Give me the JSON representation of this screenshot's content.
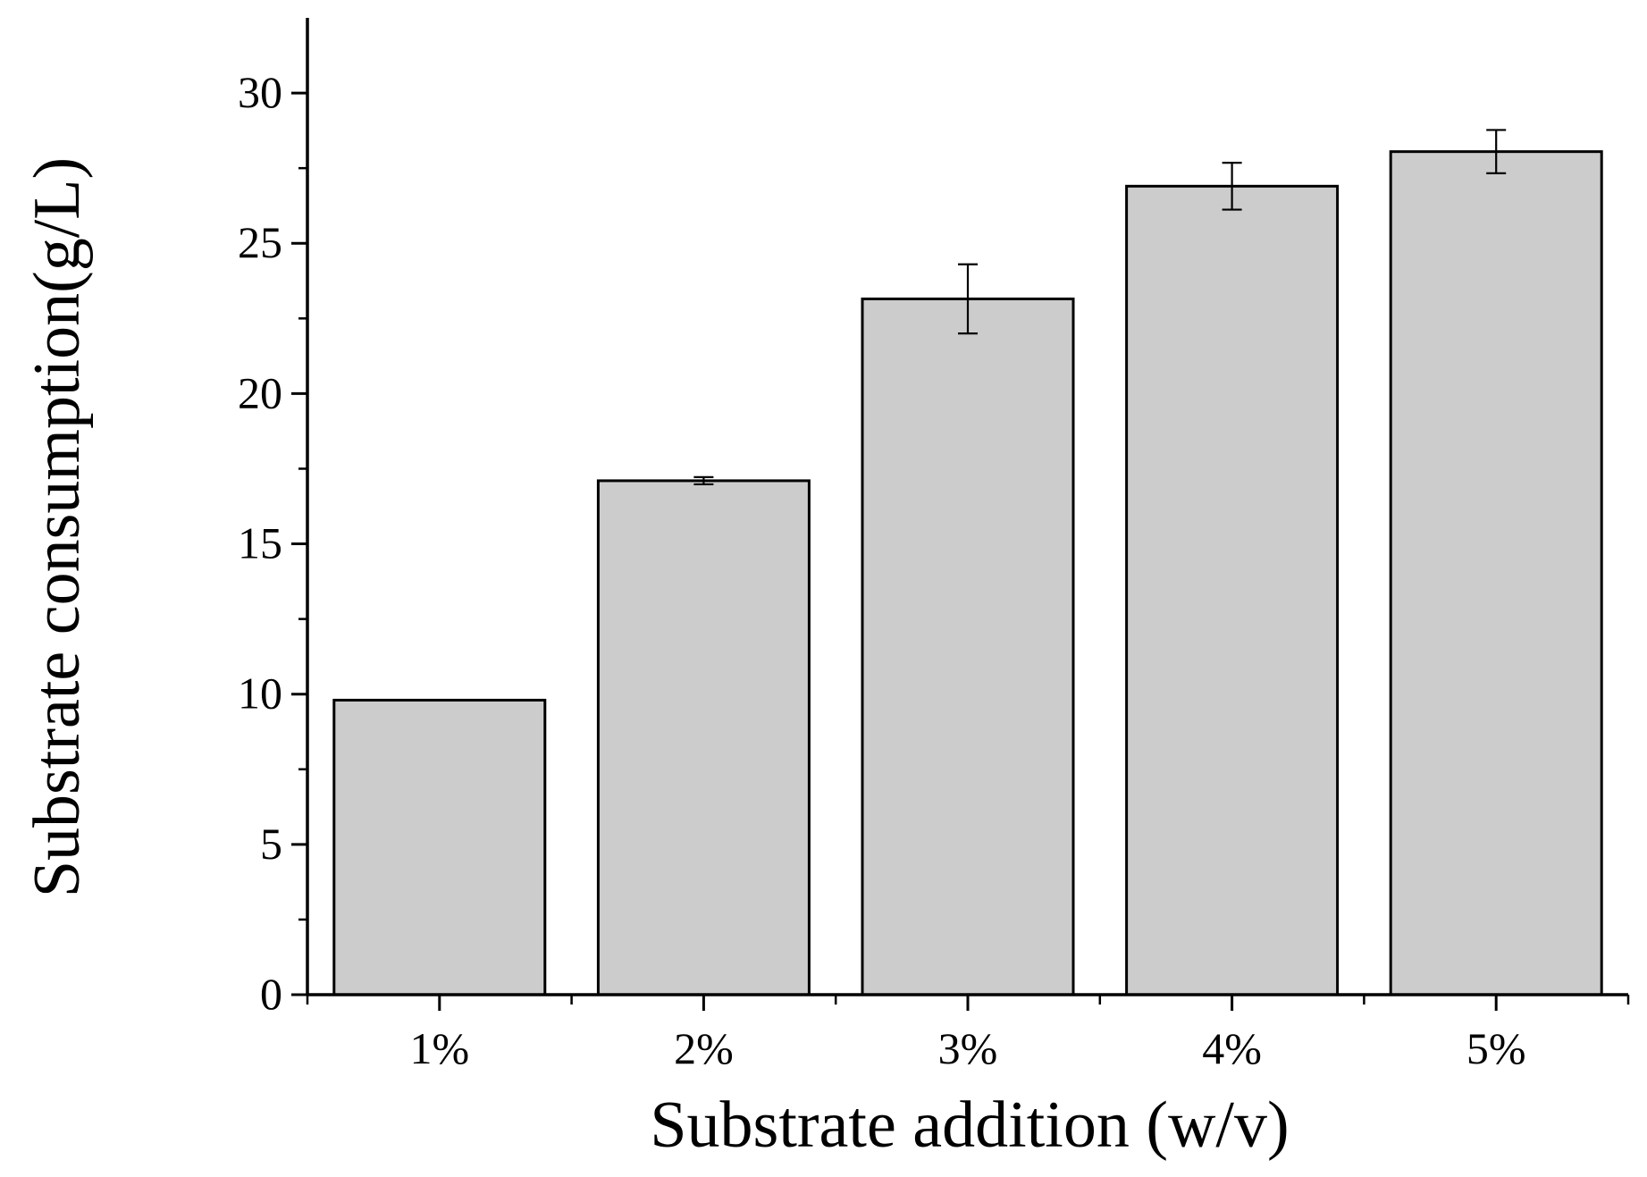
{
  "chart_data": {
    "type": "bar",
    "title": "",
    "xlabel": "Substrate addition (w/v)",
    "ylabel": "Substrate consumption(g/L)",
    "categories": [
      "1%",
      "2%",
      "3%",
      "4%",
      "5%"
    ],
    "values": [
      9.8,
      17.1,
      23.15,
      26.9,
      28.05
    ],
    "errors": [
      0,
      0.12,
      1.15,
      0.78,
      0.72
    ],
    "ylim": [
      0,
      32.5
    ],
    "yticks": [
      0,
      5,
      10,
      15,
      20,
      25,
      30
    ],
    "yminor_step": 2.5,
    "grid": false,
    "legend": "none",
    "colors": {
      "bar_fill": "#cccccc",
      "bar_stroke": "#000000",
      "axis": "#000000"
    }
  }
}
